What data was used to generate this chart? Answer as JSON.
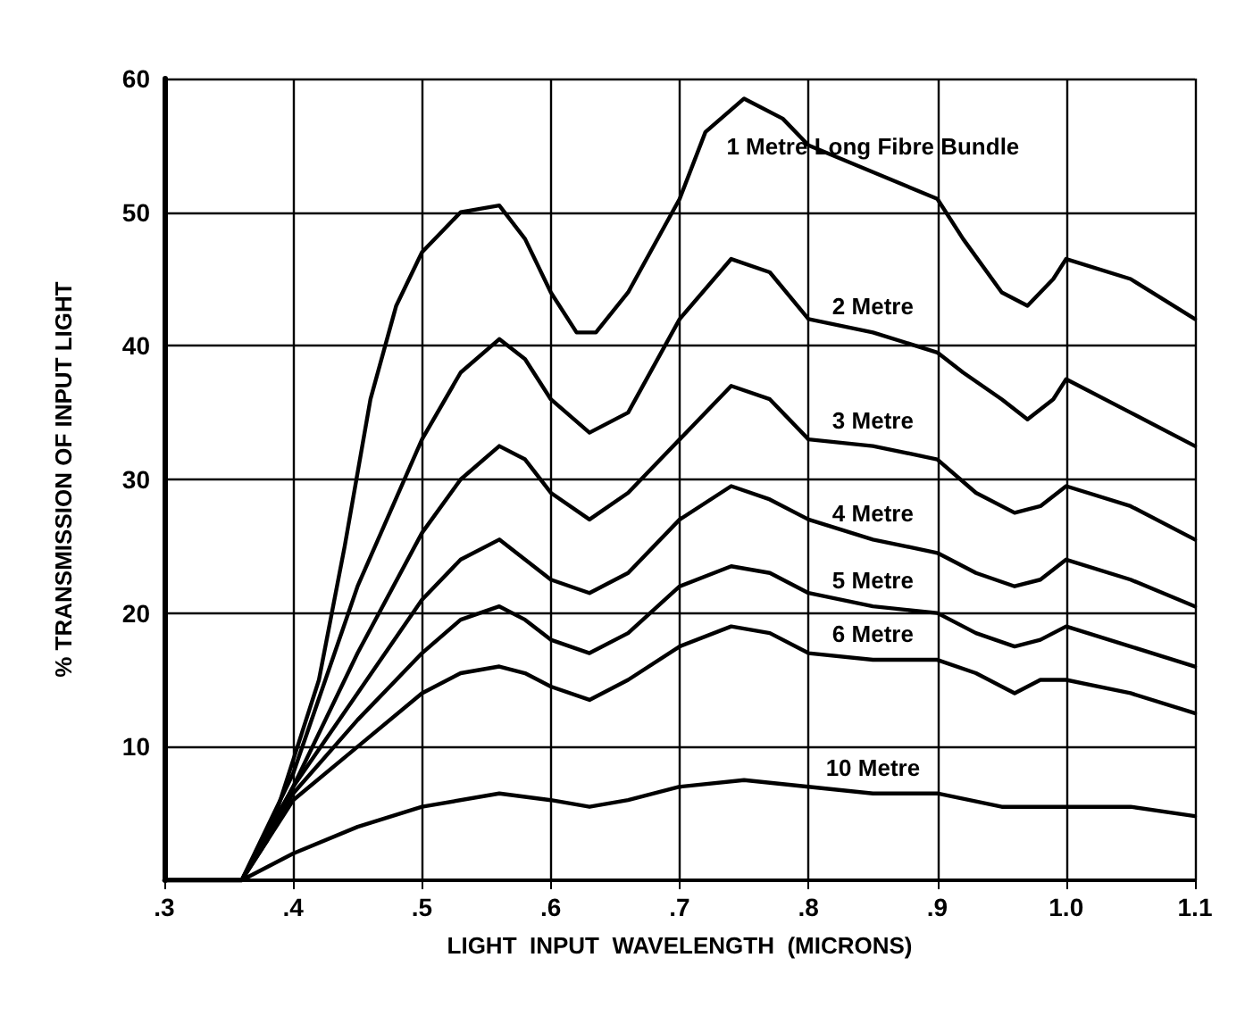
{
  "chart_data": {
    "type": "line",
    "xlabel": "LIGHT  INPUT  WAVELENGTH  (MICRONS)",
    "ylabel": "% TRANSMISSION OF INPUT LIGHT",
    "xlim": [
      0.3,
      1.1
    ],
    "xticks": [
      {
        "value": 0.3,
        "label": ".3"
      },
      {
        "value": 0.4,
        "label": ".4"
      },
      {
        "value": 0.5,
        "label": ".5"
      },
      {
        "value": 0.6,
        "label": ".6"
      },
      {
        "value": 0.7,
        "label": ".7"
      },
      {
        "value": 0.8,
        "label": ".8"
      },
      {
        "value": 0.9,
        "label": ".9"
      },
      {
        "value": 1.0,
        "label": "1.0"
      },
      {
        "value": 1.1,
        "label": "1.1"
      }
    ],
    "ylim": [
      0,
      60
    ],
    "yticks": [
      10,
      20,
      30,
      40,
      50,
      60
    ],
    "grid": true,
    "marker": "none",
    "line_style": "solid",
    "legend": false,
    "series": [
      {
        "name": "1 Metre Long Fibre Bundle",
        "color": "#000000",
        "x": [
          0.3,
          0.36,
          0.38,
          0.4,
          0.42,
          0.44,
          0.46,
          0.48,
          0.5,
          0.53,
          0.56,
          0.58,
          0.6,
          0.62,
          0.635,
          0.66,
          0.7,
          0.72,
          0.75,
          0.78,
          0.8,
          0.85,
          0.9,
          0.92,
          0.95,
          0.97,
          0.99,
          1.0,
          1.05,
          1.1
        ],
        "values": [
          0,
          0,
          3,
          9,
          15,
          25,
          36,
          43,
          47,
          50,
          50.5,
          48,
          44,
          41,
          41,
          44,
          51,
          56,
          58.5,
          57,
          55,
          53,
          51,
          48,
          44,
          43,
          45,
          46.5,
          45,
          42
        ]
      },
      {
        "name": "2 Metre",
        "color": "#000000",
        "x": [
          0.3,
          0.36,
          0.4,
          0.45,
          0.5,
          0.53,
          0.56,
          0.58,
          0.6,
          0.63,
          0.66,
          0.7,
          0.74,
          0.77,
          0.8,
          0.85,
          0.9,
          0.92,
          0.95,
          0.97,
          0.99,
          1.0,
          1.05,
          1.1
        ],
        "values": [
          0,
          0,
          8,
          22,
          33,
          38,
          40.5,
          39,
          36,
          33.5,
          35,
          42,
          46.5,
          45.5,
          42,
          41,
          39.5,
          38,
          36,
          34.5,
          36,
          37.5,
          35,
          32.5
        ]
      },
      {
        "name": "3 Metre",
        "color": "#000000",
        "x": [
          0.3,
          0.36,
          0.4,
          0.45,
          0.5,
          0.53,
          0.56,
          0.58,
          0.6,
          0.63,
          0.66,
          0.7,
          0.74,
          0.77,
          0.8,
          0.85,
          0.9,
          0.93,
          0.96,
          0.98,
          1.0,
          1.05,
          1.1
        ],
        "values": [
          0,
          0,
          7,
          17,
          26,
          30,
          32.5,
          31.5,
          29,
          27,
          29,
          33,
          37,
          36,
          33,
          32.5,
          31.5,
          29,
          27.5,
          28,
          29.5,
          28,
          25.5
        ]
      },
      {
        "name": "4 Metre",
        "color": "#000000",
        "x": [
          0.3,
          0.36,
          0.4,
          0.45,
          0.5,
          0.53,
          0.56,
          0.58,
          0.6,
          0.63,
          0.66,
          0.7,
          0.74,
          0.77,
          0.8,
          0.85,
          0.9,
          0.93,
          0.96,
          0.98,
          1.0,
          1.05,
          1.1
        ],
        "values": [
          0,
          0,
          7,
          14,
          21,
          24,
          25.5,
          24,
          22.5,
          21.5,
          23,
          27,
          29.5,
          28.5,
          27,
          25.5,
          24.5,
          23,
          22,
          22.5,
          24,
          22.5,
          20.5
        ]
      },
      {
        "name": "5 Metre",
        "color": "#000000",
        "x": [
          0.3,
          0.36,
          0.4,
          0.45,
          0.5,
          0.53,
          0.56,
          0.58,
          0.6,
          0.63,
          0.66,
          0.7,
          0.74,
          0.77,
          0.8,
          0.85,
          0.9,
          0.93,
          0.96,
          0.98,
          1.0,
          1.05,
          1.1
        ],
        "values": [
          0,
          0,
          6.5,
          12,
          17,
          19.5,
          20.5,
          19.5,
          18,
          17,
          18.5,
          22,
          23.5,
          23,
          21.5,
          20.5,
          20,
          18.5,
          17.5,
          18,
          19,
          17.5,
          16
        ]
      },
      {
        "name": "6 Metre",
        "color": "#000000",
        "x": [
          0.3,
          0.36,
          0.4,
          0.45,
          0.5,
          0.53,
          0.56,
          0.58,
          0.6,
          0.63,
          0.66,
          0.7,
          0.74,
          0.77,
          0.8,
          0.85,
          0.9,
          0.93,
          0.96,
          0.98,
          1.0,
          1.05,
          1.1
        ],
        "values": [
          0,
          0,
          6,
          10,
          14,
          15.5,
          16,
          15.5,
          14.5,
          13.5,
          15,
          17.5,
          19,
          18.5,
          17,
          16.5,
          16.5,
          15.5,
          14,
          15,
          15,
          14,
          12.5
        ]
      },
      {
        "name": "10 Metre",
        "color": "#000000",
        "x": [
          0.3,
          0.36,
          0.37,
          0.4,
          0.45,
          0.5,
          0.56,
          0.6,
          0.63,
          0.66,
          0.7,
          0.75,
          0.8,
          0.85,
          0.9,
          0.95,
          1.0,
          1.05,
          1.1
        ],
        "values": [
          0,
          0,
          0.5,
          2,
          4,
          5.5,
          6.5,
          6,
          5.5,
          6,
          7,
          7.5,
          7,
          6.5,
          6.5,
          5.5,
          5.5,
          5.5,
          4.8
        ]
      }
    ]
  }
}
